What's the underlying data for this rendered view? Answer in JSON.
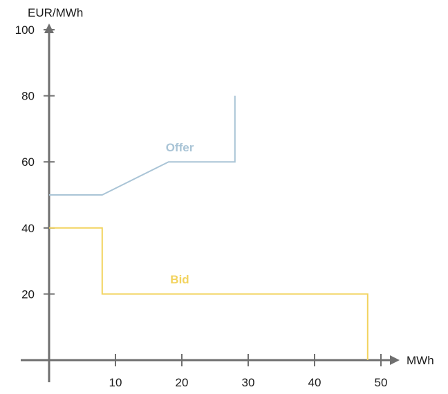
{
  "chart_data": {
    "type": "line",
    "xlabel": "MWh",
    "ylabel": "EUR/MWh",
    "xlim": [
      0,
      50
    ],
    "ylim": [
      0,
      100
    ],
    "x_ticks": [
      10,
      20,
      30,
      40,
      50
    ],
    "y_ticks": [
      20,
      40,
      60,
      80,
      100
    ],
    "grid": false,
    "series": [
      {
        "name": "Offer",
        "color": "#a9c4d6",
        "points": [
          [
            0,
            50
          ],
          [
            8,
            50
          ],
          [
            18,
            60
          ],
          [
            28,
            60
          ],
          [
            28,
            80
          ]
        ]
      },
      {
        "name": "Bid",
        "color": "#f2d35e",
        "points": [
          [
            0,
            40
          ],
          [
            8,
            40
          ],
          [
            8,
            20
          ],
          [
            48,
            20
          ],
          [
            48,
            0
          ]
        ]
      }
    ]
  }
}
